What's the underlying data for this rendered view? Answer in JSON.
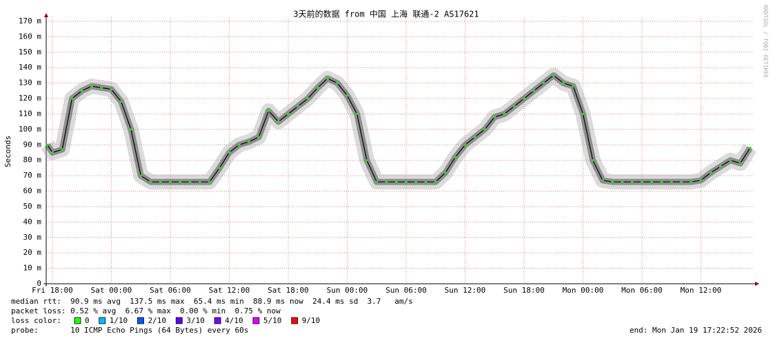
{
  "chart_data": {
    "type": "line",
    "title": "3天前的数据 from 中国 上海 联通-2 AS17621",
    "y_label": "Seconds",
    "watermark": "RRDTOOL / TOBI OETIKER",
    "xlim": [
      17.37,
      89.37
    ],
    "xticks": [
      {
        "value": 18,
        "label": "Fri 18:00"
      },
      {
        "value": 24,
        "label": "Sat 00:00"
      },
      {
        "value": 30,
        "label": "Sat 06:00"
      },
      {
        "value": 36,
        "label": "Sat 12:00"
      },
      {
        "value": 42,
        "label": "Sat 18:00"
      },
      {
        "value": 48,
        "label": "Sun 00:00"
      },
      {
        "value": 54,
        "label": "Sun 06:00"
      },
      {
        "value": 60,
        "label": "Sun 12:00"
      },
      {
        "value": 66,
        "label": "Sun 18:00"
      },
      {
        "value": 72,
        "label": "Mon 00:00"
      },
      {
        "value": 78,
        "label": "Mon 06:00"
      },
      {
        "value": 84,
        "label": "Mon 12:00"
      }
    ],
    "ylim": [
      0,
      170
    ],
    "yticks": [
      0,
      {
        "value": 10,
        "label": "10 m"
      },
      {
        "value": 20,
        "label": "20 m"
      },
      {
        "value": 30,
        "label": "30 m"
      },
      {
        "value": 40,
        "label": "40 m"
      },
      {
        "value": 50,
        "label": "50 m"
      },
      {
        "value": 60,
        "label": "60 m"
      },
      {
        "value": 70,
        "label": "70 m"
      },
      {
        "value": 80,
        "label": "80 m"
      },
      {
        "value": 90,
        "label": "90 m"
      },
      {
        "value": 100,
        "label": "100 m"
      },
      {
        "value": 110,
        "label": "110 m"
      },
      {
        "value": 120,
        "label": "120 m"
      },
      {
        "value": 130,
        "label": "130 m"
      },
      {
        "value": 140,
        "label": "140 m"
      },
      {
        "value": 150,
        "label": "150 m"
      },
      {
        "value": 160,
        "label": "160 m"
      },
      {
        "value": 170,
        "label": "170 m"
      }
    ],
    "grid": true,
    "x": [
      17.5,
      18,
      19,
      20,
      21,
      22,
      23,
      24,
      25,
      26,
      27,
      28,
      29,
      30,
      31,
      32,
      33,
      34,
      35,
      36,
      37,
      38,
      39,
      40,
      41,
      42,
      43,
      44,
      45,
      46,
      47,
      48,
      49,
      50,
      51,
      52,
      53,
      54,
      55,
      56,
      57,
      58,
      59,
      60,
      61,
      62,
      63,
      64,
      65,
      66,
      67,
      68,
      69,
      70,
      71,
      72,
      73,
      74,
      75,
      76,
      77,
      78,
      79,
      80,
      81,
      82,
      83,
      84,
      85,
      86,
      87,
      88,
      89
    ],
    "series": [
      {
        "name": "median rtt",
        "color": "#22dd22",
        "values": [
          90,
          85,
          87,
          120,
          125,
          128,
          127,
          126,
          118,
          100,
          70,
          66,
          66,
          66,
          66,
          66,
          66,
          66,
          75,
          85,
          90,
          92,
          95,
          112,
          105,
          110,
          115,
          120,
          127,
          133,
          130,
          122,
          110,
          80,
          66,
          66,
          66,
          66,
          66,
          66,
          66,
          72,
          82,
          90,
          95,
          100,
          108,
          110,
          115,
          120,
          125,
          130,
          135,
          130,
          128,
          110,
          80,
          67,
          66,
          66,
          66,
          66,
          66,
          66,
          66,
          66,
          66,
          67,
          72,
          76,
          80,
          78,
          88
        ]
      }
    ],
    "stats": [
      "median rtt:  90.9 ms avg  137.5 ms max  65.4 ms min  88.9 ms now  24.4 ms sd  3.7   am/s",
      "packet loss: 0.52 % avg  6.67 % max  0.00 % min  0.75 % now"
    ],
    "loss_label": "loss color:",
    "loss_colors": [
      {
        "name": "0",
        "color": "#26ff00"
      },
      {
        "name": "1/10",
        "color": "#00b8ff"
      },
      {
        "name": "2/10",
        "color": "#0059ff"
      },
      {
        "name": "3/10",
        "color": "#5e00ff"
      },
      {
        "name": "4/10",
        "color": "#7e00ff"
      },
      {
        "name": "5/10",
        "color": "#dd00ff"
      },
      {
        "name": "9/10",
        "color": "#ff0000"
      }
    ],
    "probe": "probe:       10 ICMP Echo Pings (64 Bytes) every 60s",
    "end": "end: Mon Jan 19 17:22:52 2026"
  }
}
